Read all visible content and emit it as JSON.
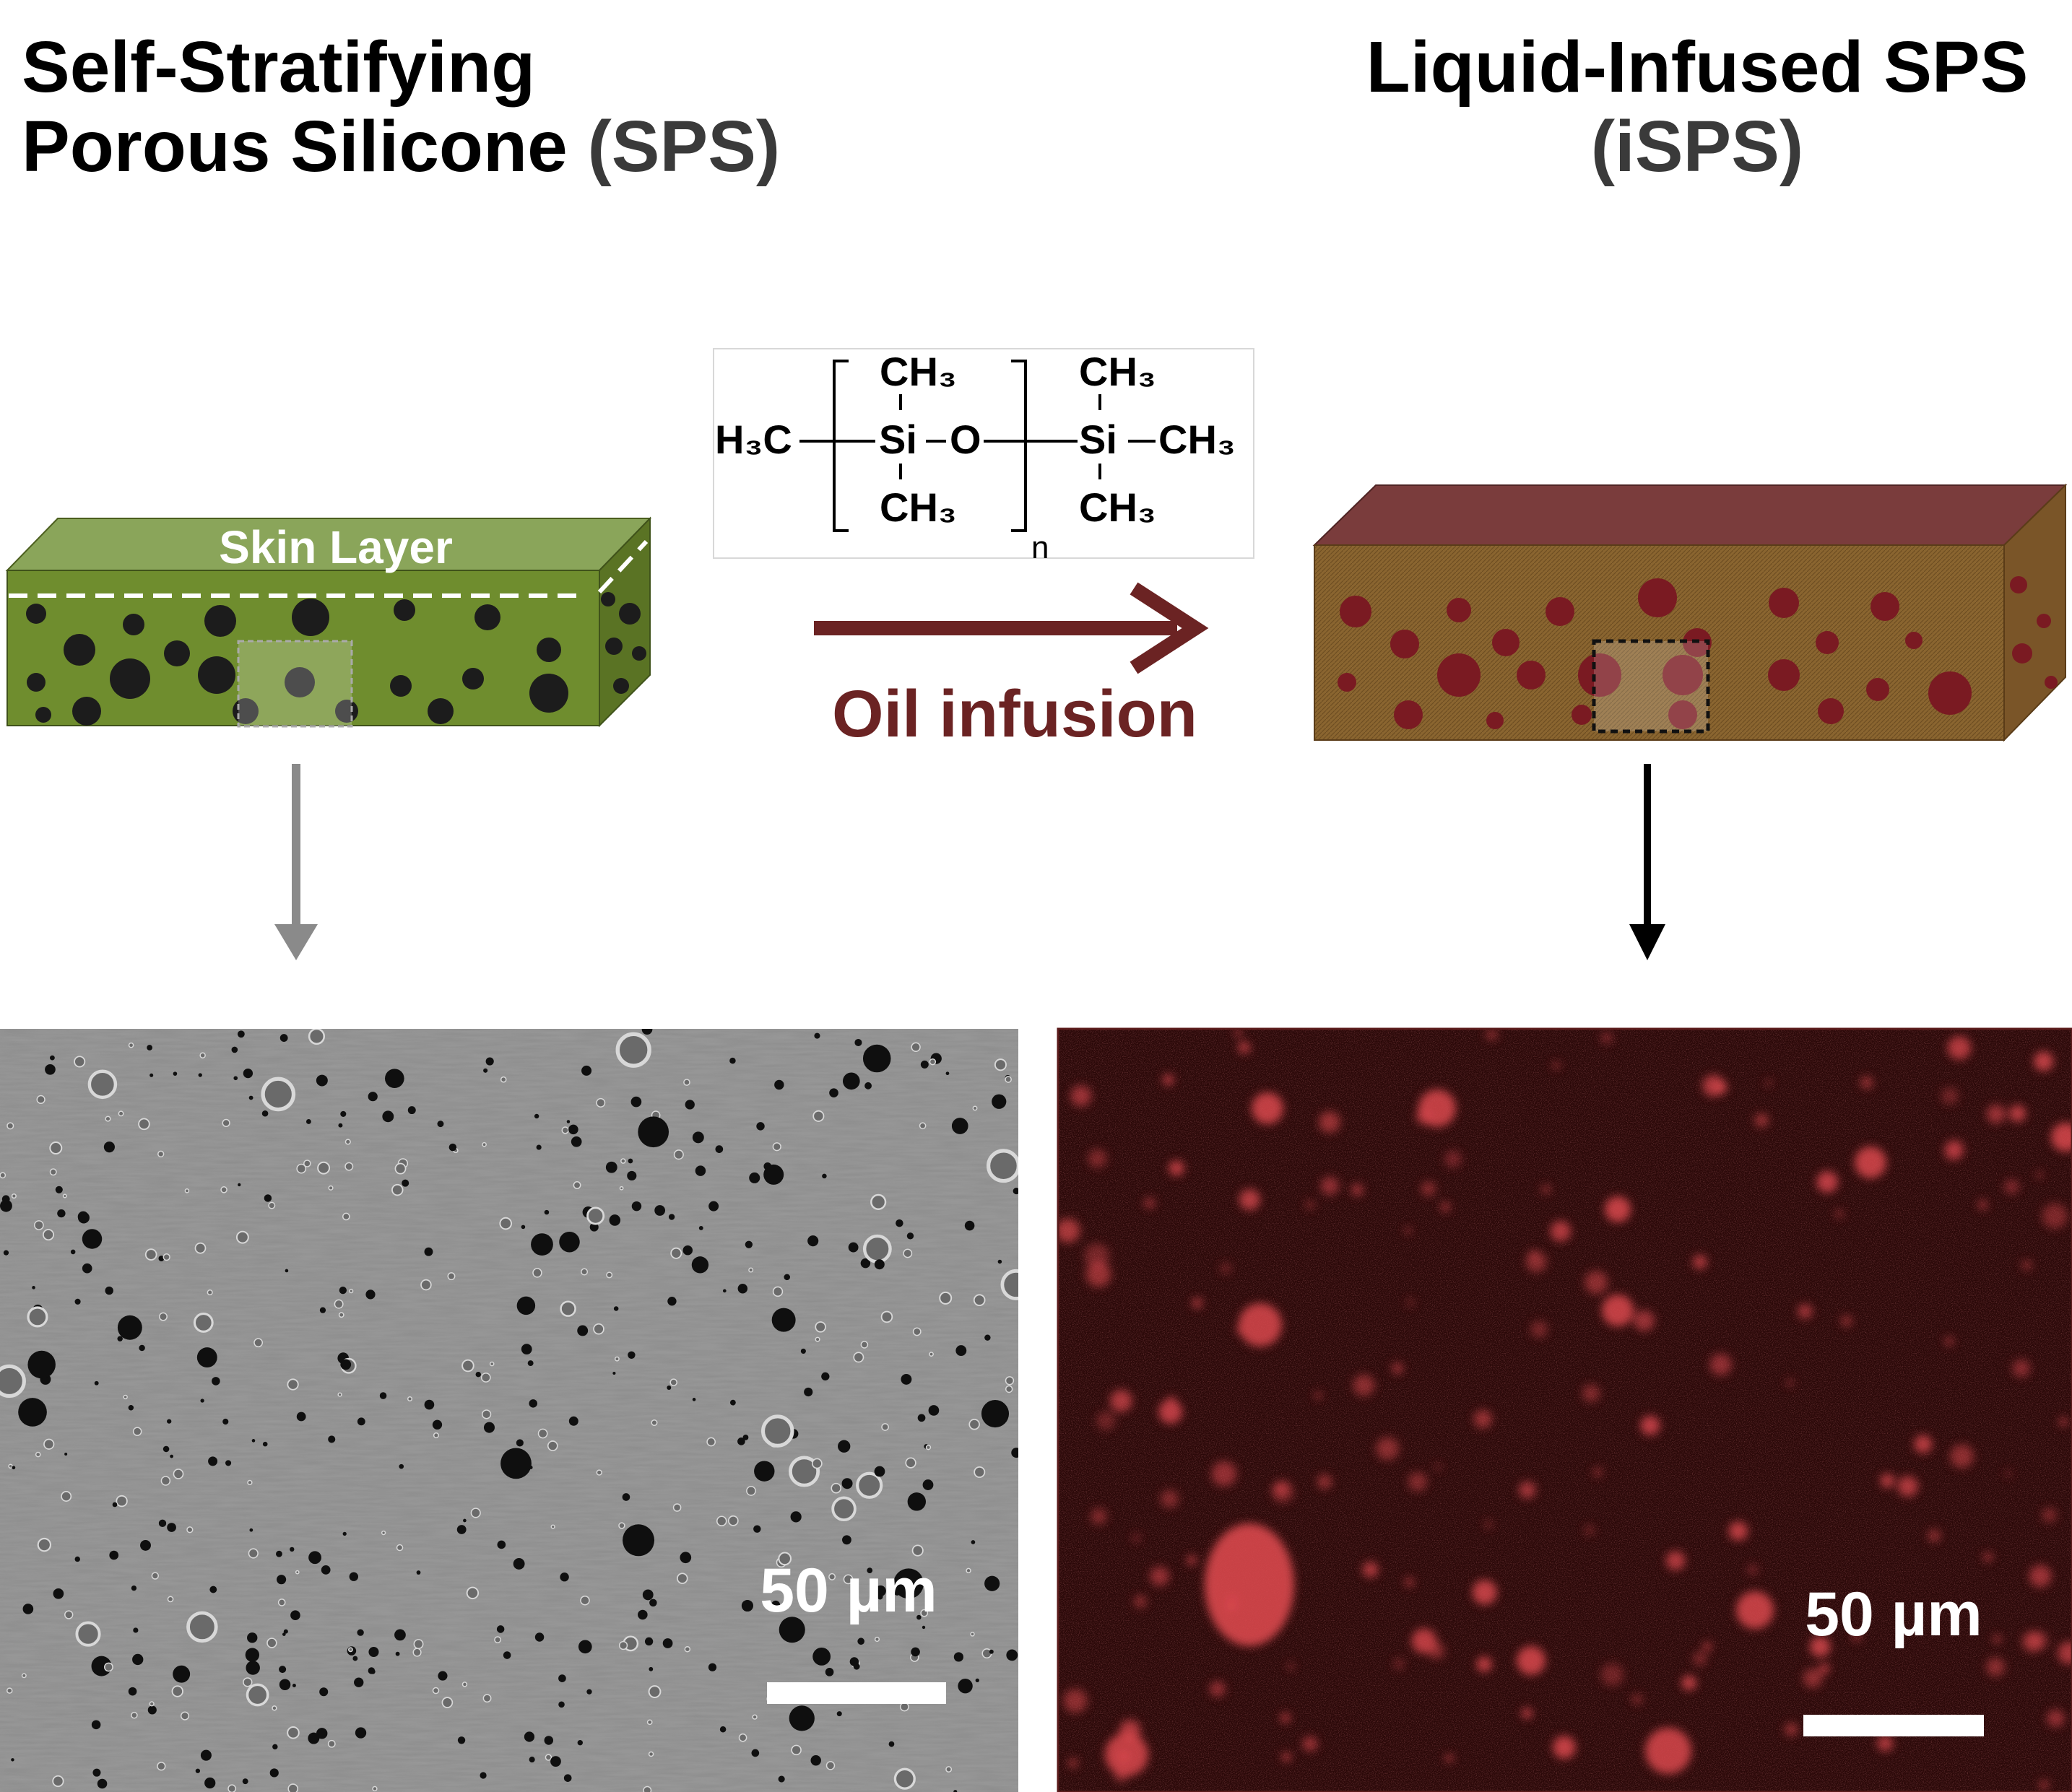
{
  "titles": {
    "left_line1": "Self-Stratifying",
    "left_line2_main": "Porous Silicone ",
    "left_line2_accent": "(SPS)",
    "right_line1": "Liquid-Infused SPS",
    "right_line2": "(iSPS)"
  },
  "left_block": {
    "label": "Skin Layer"
  },
  "chemical": {
    "left_end": "H₃C",
    "si_center": "Si",
    "oxygen": "O",
    "si_right": "Si",
    "right_end": "CH₃",
    "methyl_top": "CH₃",
    "methyl_bottom": "CH₃",
    "repeat_subscript": "n"
  },
  "process": {
    "label": "Oil infusion"
  },
  "micrographs": {
    "left_scale": "50 µm",
    "right_scale": "50 µm"
  },
  "colors": {
    "green_front": "#6f8d2e",
    "green_top": "#8aa55a",
    "green_side": "#5a7324",
    "pore_dark": "#1c1c1c",
    "brown_front": "#8a6530",
    "brown_top": "#7a3c3c",
    "oil_droplet": "#7a1a22",
    "arrow_maroon": "#6b2323",
    "arrow_gray": "#8a8a8a",
    "sem_bg": "#8d8d8d",
    "fluor_bg": "#2a0808",
    "fluor_spot": "#d9484e"
  }
}
